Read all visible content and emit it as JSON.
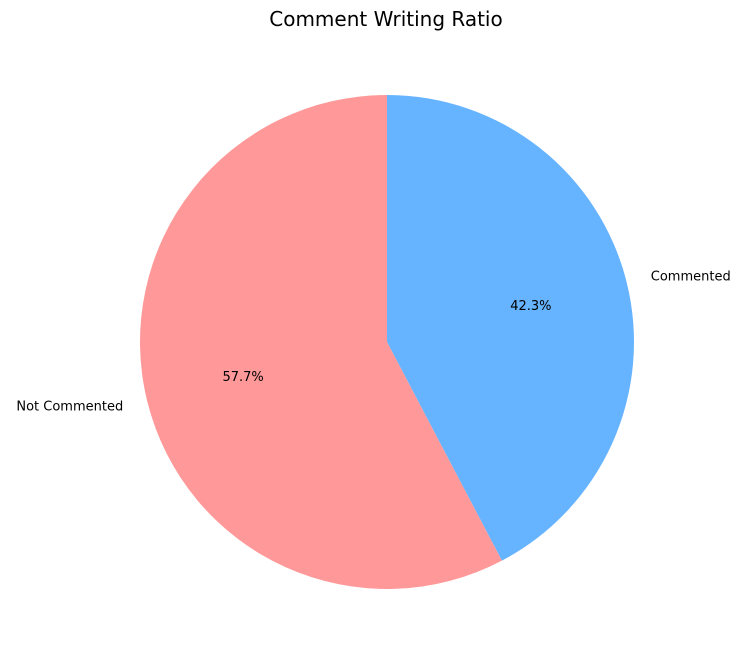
{
  "chart_data": {
    "type": "pie",
    "title": "Comment Writing Ratio",
    "categories": [
      "Commented",
      "Not Commented"
    ],
    "values": [
      42.3,
      57.7
    ],
    "colors": [
      "#66b3ff",
      "#ff9999"
    ],
    "labels_pct": [
      "42.3%",
      "57.7%"
    ],
    "start_angle_deg": 90,
    "direction": "clockwise"
  }
}
